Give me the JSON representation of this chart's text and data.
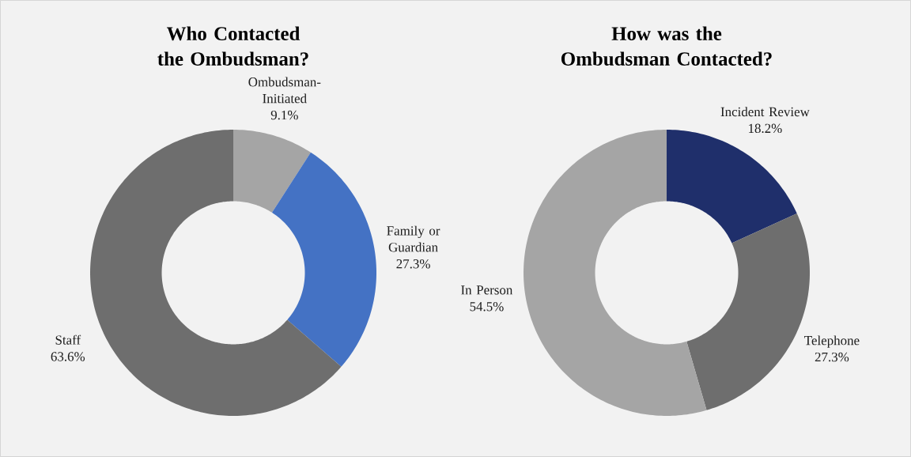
{
  "chart_data": [
    {
      "type": "donut",
      "title": "Who Contacted the Ombudsman?",
      "categories": [
        "Ombudsman-Initiated",
        "Family or Guardian",
        "Staff"
      ],
      "values": [
        9.1,
        27.3,
        63.6
      ],
      "colors": [
        "#a5a5a5",
        "#4472c4",
        "#6e6e6e"
      ],
      "value_labels": [
        "9.1%",
        "27.3%",
        "63.6%"
      ]
    },
    {
      "type": "donut",
      "title": "How was the Ombudsman Contacted?",
      "categories": [
        "Incident Review",
        "Telephone",
        "In Person"
      ],
      "values": [
        18.2,
        27.3,
        54.5
      ],
      "colors": [
        "#1f2f6b",
        "#6e6e6e",
        "#a5a5a5"
      ],
      "value_labels": [
        "18.2%",
        "27.3%",
        "54.5%"
      ]
    }
  ]
}
